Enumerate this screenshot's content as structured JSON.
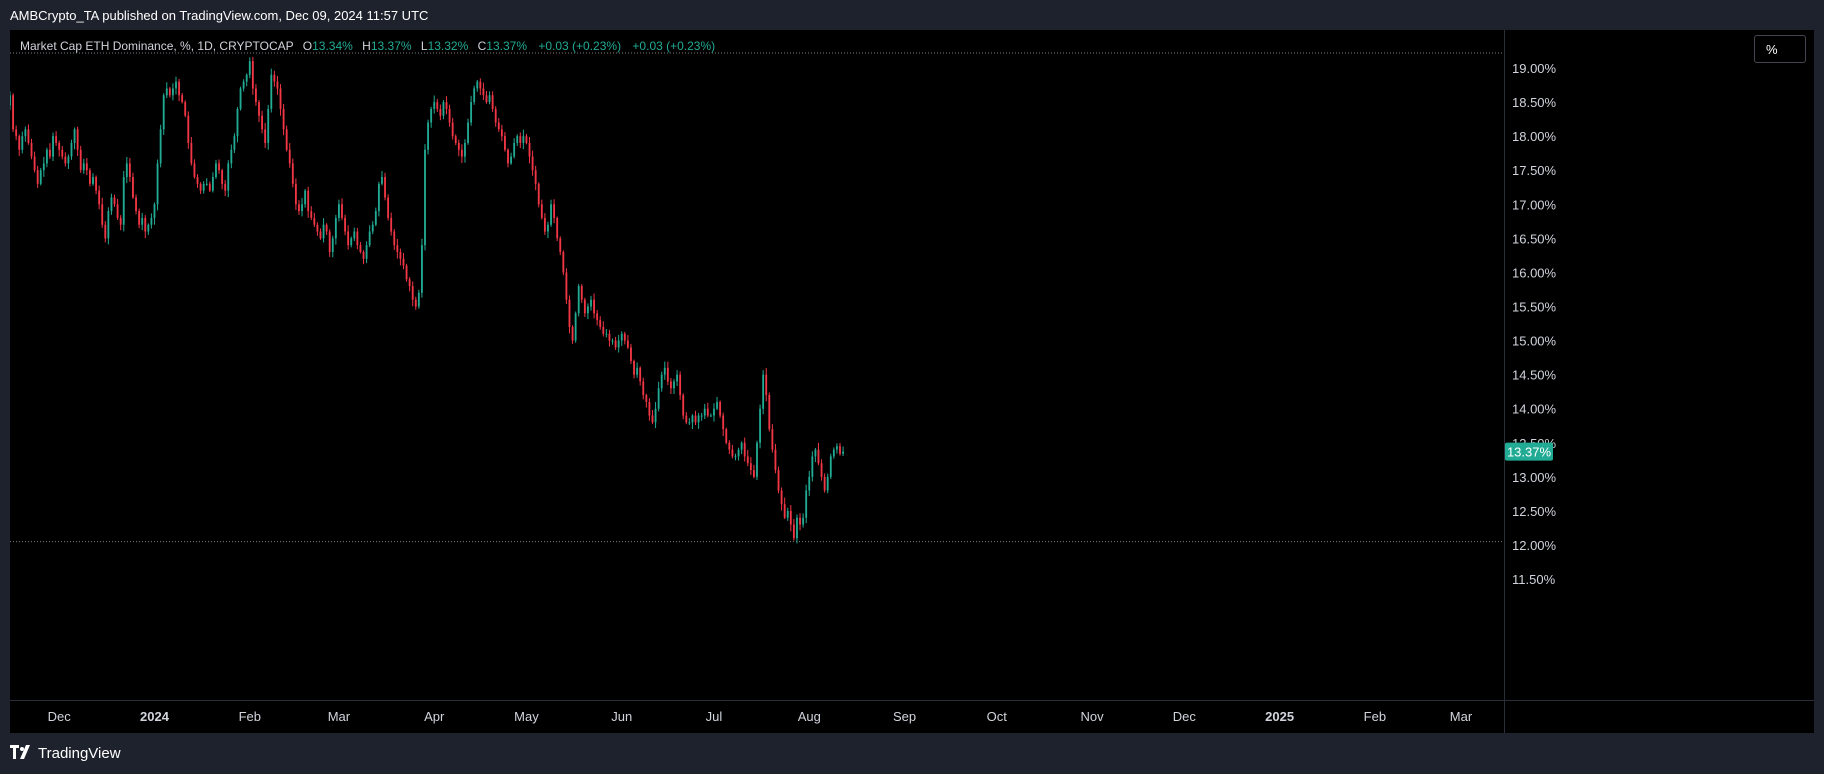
{
  "header": {
    "published": "AMBCrypto_TA published on TradingView.com, Dec 09, 2024 11:57 UTC"
  },
  "legend": {
    "symbol": "Market Cap ETH Dominance, %, 1D, CRYPTOCAP",
    "open_label": "O",
    "open_value": "13.34%",
    "high_label": "H",
    "high_value": "13.37%",
    "low_label": "L",
    "low_value": "13.32%",
    "close_label": "C",
    "close_value": "13.37%",
    "change1": "+0.03 (+0.23%)",
    "change2": "+0.03 (+0.23%)"
  },
  "toolbar": {
    "scale_label": "%"
  },
  "footer": {
    "brand": "TradingView"
  },
  "colors": {
    "up": "#22ab94",
    "down": "#f23645",
    "background": "#000000",
    "frame": "#1e222d"
  },
  "chart_data": {
    "type": "candlestick",
    "title": "Market Cap ETH Dominance, %, 1D, CRYPTOCAP",
    "ylabel": "%",
    "ylim": [
      11.2,
      19.3
    ],
    "y_ticks": [
      "19.00%",
      "18.50%",
      "18.00%",
      "17.50%",
      "17.00%",
      "16.50%",
      "16.00%",
      "15.50%",
      "15.00%",
      "14.50%",
      "14.00%",
      "13.50%",
      "13.00%",
      "12.50%",
      "12.00%",
      "11.50%"
    ],
    "x_ticks": [
      {
        "label": "Dec",
        "date": "2023-12-01"
      },
      {
        "label": "2024",
        "date": "2024-01-01",
        "year": true
      },
      {
        "label": "Feb",
        "date": "2024-02-01"
      },
      {
        "label": "Mar",
        "date": "2024-03-01"
      },
      {
        "label": "Apr",
        "date": "2024-04-01"
      },
      {
        "label": "May",
        "date": "2024-05-01"
      },
      {
        "label": "Jun",
        "date": "2024-06-01"
      },
      {
        "label": "Jul",
        "date": "2024-07-01"
      },
      {
        "label": "Aug",
        "date": "2024-08-01"
      },
      {
        "label": "Sep",
        "date": "2024-09-01"
      },
      {
        "label": "Oct",
        "date": "2024-10-01"
      },
      {
        "label": "Nov",
        "date": "2024-11-01"
      },
      {
        "label": "Dec",
        "date": "2024-12-01"
      },
      {
        "label": "2025",
        "date": "2025-01-01",
        "year": true
      },
      {
        "label": "Feb",
        "date": "2025-02-01"
      },
      {
        "label": "Mar",
        "date": "2025-03-01"
      }
    ],
    "x_range": [
      "2023-11-15",
      "2025-03-15"
    ],
    "start_date": "2023-11-15",
    "closes": [
      18.6,
      18.1,
      18.0,
      17.8,
      18.0,
      18.1,
      17.9,
      17.7,
      17.5,
      17.3,
      17.5,
      17.6,
      17.8,
      17.7,
      18.0,
      17.9,
      17.8,
      17.7,
      17.6,
      17.7,
      17.9,
      18.1,
      17.8,
      17.5,
      17.6,
      17.5,
      17.3,
      17.4,
      17.2,
      17.0,
      16.7,
      16.5,
      16.9,
      17.1,
      17.0,
      16.8,
      16.7,
      17.4,
      17.6,
      17.4,
      17.1,
      16.9,
      16.7,
      16.8,
      16.6,
      16.7,
      16.8,
      17.0,
      17.6,
      18.1,
      18.6,
      18.7,
      18.6,
      18.7,
      18.8,
      18.6,
      18.5,
      18.3,
      17.9,
      17.6,
      17.4,
      17.3,
      17.2,
      17.3,
      17.3,
      17.2,
      17.4,
      17.6,
      17.5,
      17.3,
      17.2,
      17.6,
      17.8,
      18.0,
      18.4,
      18.7,
      18.8,
      18.9,
      19.1,
      18.7,
      18.5,
      18.3,
      18.1,
      17.9,
      18.4,
      18.9,
      18.8,
      18.7,
      18.4,
      18.1,
      17.8,
      17.6,
      17.3,
      17.0,
      16.9,
      17.0,
      17.2,
      16.9,
      16.8,
      16.7,
      16.6,
      16.5,
      16.7,
      16.6,
      16.3,
      16.5,
      16.8,
      17.0,
      16.8,
      16.6,
      16.4,
      16.5,
      16.6,
      16.4,
      16.3,
      16.2,
      16.4,
      16.6,
      16.7,
      16.9,
      17.3,
      17.4,
      17.1,
      16.8,
      16.6,
      16.4,
      16.3,
      16.2,
      16.1,
      15.9,
      15.8,
      15.6,
      15.5,
      15.7,
      16.4,
      17.8,
      18.2,
      18.4,
      18.5,
      18.4,
      18.3,
      18.5,
      18.4,
      18.2,
      18.0,
      17.9,
      17.8,
      17.7,
      17.9,
      18.2,
      18.5,
      18.7,
      18.8,
      18.7,
      18.6,
      18.5,
      18.6,
      18.4,
      18.2,
      18.1,
      18.0,
      17.8,
      17.6,
      17.7,
      17.9,
      18.0,
      17.9,
      18.0,
      17.9,
      17.7,
      17.5,
      17.3,
      17.0,
      16.8,
      16.6,
      16.7,
      17.0,
      16.8,
      16.5,
      16.3,
      16.0,
      15.6,
      15.2,
      15.0,
      15.4,
      15.8,
      15.6,
      15.4,
      15.5,
      15.6,
      15.4,
      15.3,
      15.2,
      15.1,
      15.1,
      15.0,
      15.0,
      14.9,
      15.0,
      15.1,
      15.0,
      14.9,
      14.7,
      14.5,
      14.6,
      14.4,
      14.2,
      14.1,
      13.9,
      13.8,
      14.0,
      14.3,
      14.5,
      14.6,
      14.4,
      14.3,
      14.4,
      14.5,
      14.2,
      13.9,
      13.8,
      13.8,
      13.9,
      13.8,
      13.9,
      13.9,
      14.0,
      13.9,
      13.9,
      14.0,
      14.1,
      13.9,
      13.7,
      13.5,
      13.4,
      13.3,
      13.3,
      13.4,
      13.5,
      13.3,
      13.2,
      13.1,
      13.0,
      13.5,
      14.0,
      14.5,
      14.2,
      13.7,
      13.4,
      13.1,
      12.8,
      12.6,
      12.4,
      12.5,
      12.3,
      12.1,
      12.4,
      12.3,
      12.4,
      12.8,
      13.0,
      13.3,
      13.4,
      13.2,
      13.0,
      12.8,
      13.0,
      13.3,
      13.4,
      13.45,
      13.34,
      13.37
    ],
    "last_value_label": "13.37%"
  }
}
